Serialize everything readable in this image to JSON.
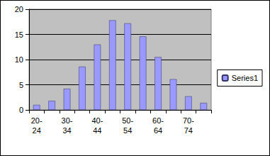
{
  "chart_data": {
    "type": "bar",
    "categories": [
      "20-24",
      null,
      "30-34",
      null,
      "40-44",
      null,
      "50-54",
      null,
      "60-64",
      null,
      "70-74",
      null
    ],
    "series": [
      {
        "name": "Series1",
        "color": "#9999ff",
        "values": [
          1.0,
          1.8,
          4.2,
          8.6,
          13.0,
          17.8,
          17.2,
          14.6,
          10.5,
          6.1,
          2.7,
          1.4
        ]
      }
    ],
    "ylim": [
      0,
      20
    ],
    "yticks": [
      0,
      5,
      10,
      15,
      20
    ],
    "grid": true,
    "legend": "right"
  }
}
